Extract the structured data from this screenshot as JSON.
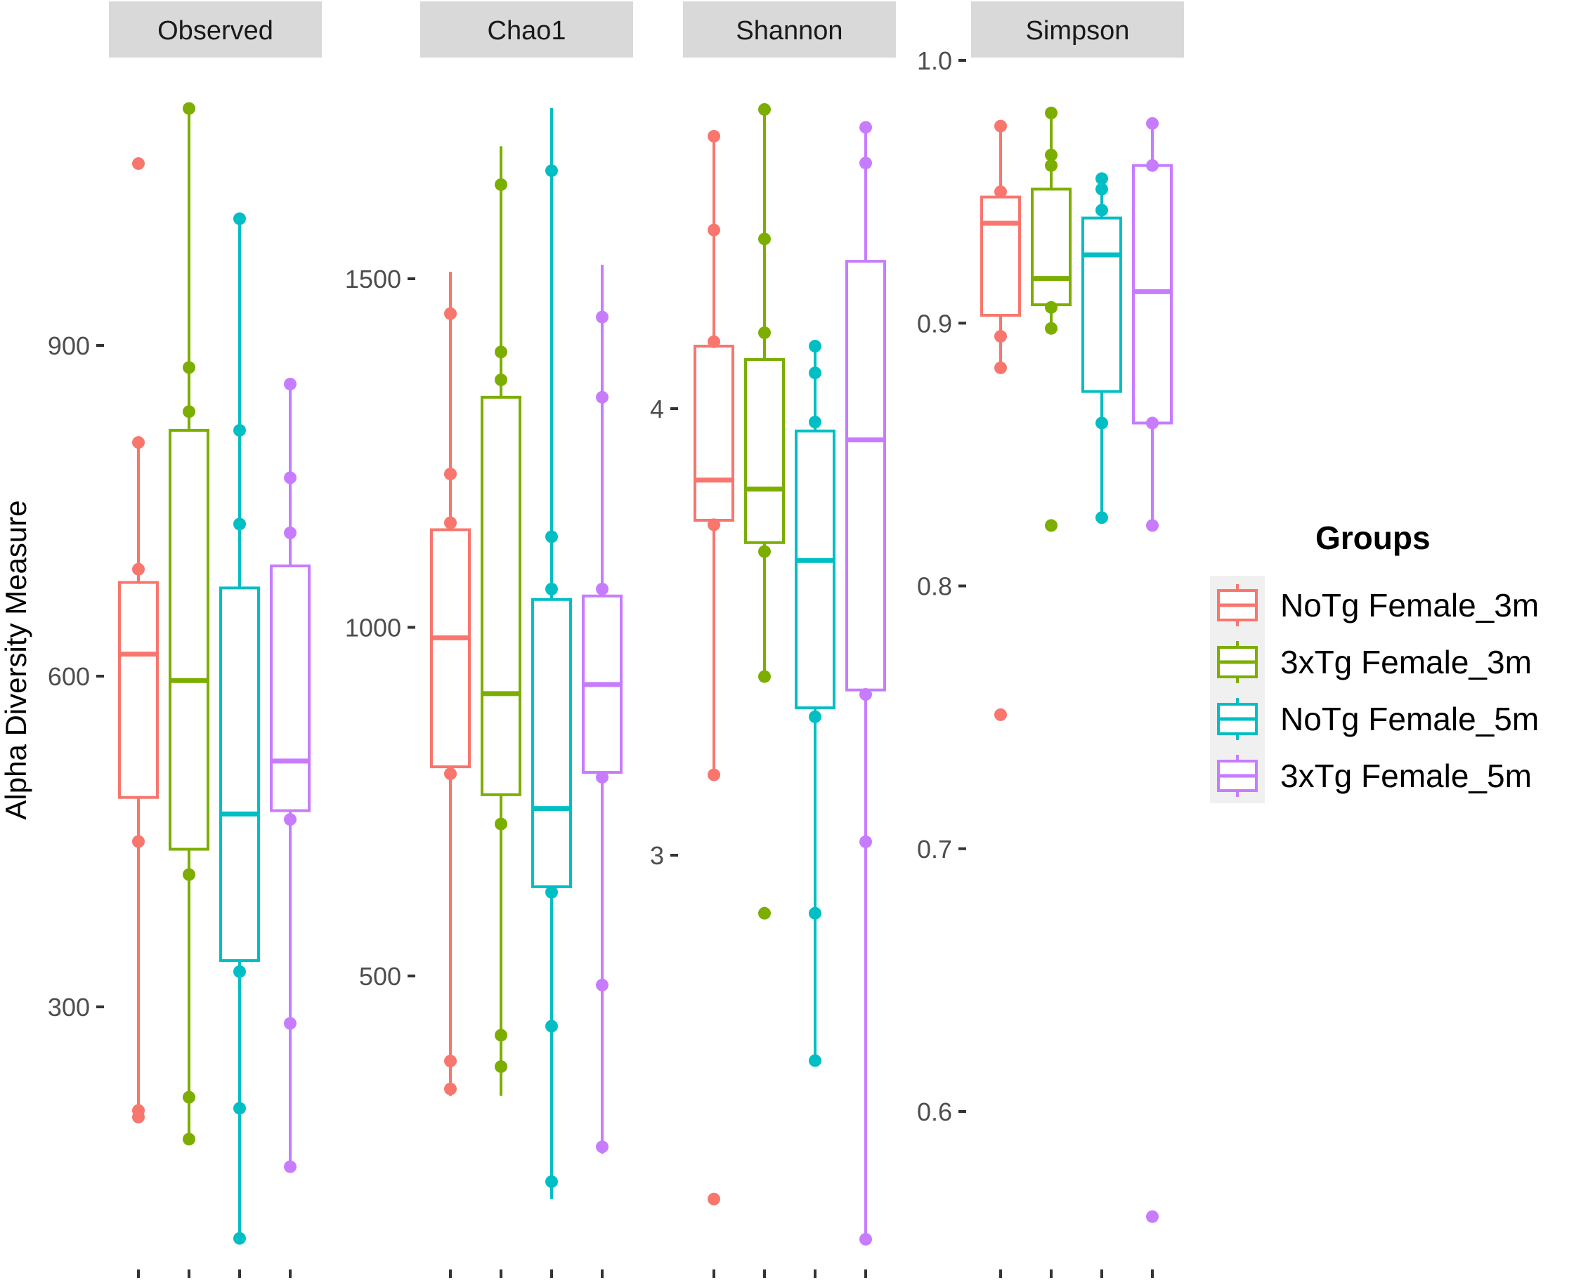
{
  "chart_data": {
    "type": "box",
    "ylabel": "Alpha Diversity Measure",
    "legend": {
      "title": "Groups",
      "position": "right",
      "entries": [
        {
          "name": "NoTg Female_3m",
          "color": "#F8766D"
        },
        {
          "name": "3xTg Female_3m",
          "color": "#7CAE00"
        },
        {
          "name": "NoTg Female_5m",
          "color": "#00BFC4"
        },
        {
          "name": "3xTg Female_5m",
          "color": "#C77CFF"
        }
      ]
    },
    "panels": [
      {
        "name": "Observed",
        "ylim": [
          90,
          1115
        ],
        "ticks": [
          300,
          600,
          900
        ],
        "tick_labels": [
          "300",
          "600",
          "900"
        ],
        "boxes": [
          {
            "group": "NoTg Female_3m",
            "q1": 490,
            "median": 620,
            "q3": 685,
            "whisker_low": 200,
            "whisker_high": 812,
            "points": [
              1065,
              812,
              697,
              450,
              206,
              200
            ]
          },
          {
            "group": "3xTg Female_3m",
            "q1": 443,
            "median": 596,
            "q3": 823,
            "whisker_low": 180,
            "whisker_high": 1115,
            "points": [
              1115,
              880,
              840,
              420,
              218,
              180
            ]
          },
          {
            "group": "NoTg Female_5m",
            "q1": 342,
            "median": 475,
            "q3": 680,
            "whisker_low": 90,
            "whisker_high": 1015,
            "points": [
              1015,
              823,
              738,
              332,
              208,
              90
            ]
          },
          {
            "group": "3xTg Female_5m",
            "q1": 478,
            "median": 523,
            "q3": 700,
            "whisker_low": 155,
            "whisker_high": 865,
            "points": [
              865,
              780,
              730,
              470,
              285,
              155
            ]
          }
        ]
      },
      {
        "name": "Chao1",
        "ylim": [
          180,
          1750
        ],
        "ticks": [
          500,
          1000,
          1500
        ],
        "tick_labels": [
          "500",
          "1000",
          "1500"
        ],
        "boxes": [
          {
            "group": "NoTg Female_3m",
            "q1": 800,
            "median": 985,
            "q3": 1140,
            "whisker_low": 328,
            "whisker_high": 1510,
            "points": [
              1450,
              1220,
              1150,
              790,
              378,
              338
            ]
          },
          {
            "group": "3xTg Female_3m",
            "q1": 760,
            "median": 905,
            "q3": 1330,
            "whisker_low": 328,
            "whisker_high": 1690,
            "points": [
              1635,
              1395,
              1355,
              718,
              415,
              370
            ]
          },
          {
            "group": "NoTg Female_5m",
            "q1": 628,
            "median": 740,
            "q3": 1040,
            "whisker_low": 180,
            "whisker_high": 1745,
            "points": [
              1655,
              1130,
              1055,
              620,
              428,
              205
            ]
          },
          {
            "group": "3xTg Female_5m",
            "q1": 792,
            "median": 918,
            "q3": 1045,
            "whisker_low": 245,
            "whisker_high": 1520,
            "points": [
              1445,
              1330,
              1055,
              785,
              487,
              255
            ]
          }
        ]
      },
      {
        "name": "Shannon",
        "ylim": [
          2.22,
          4.67
        ],
        "ticks": [
          3,
          4
        ],
        "tick_labels": [
          "3",
          "4"
        ],
        "boxes": [
          {
            "group": "NoTg Female_3m",
            "q1": 3.75,
            "median": 3.84,
            "q3": 4.14,
            "whisker_low": 3.18,
            "whisker_high": 4.61,
            "points": [
              4.61,
              4.4,
              4.15,
              3.74,
              3.18,
              2.23
            ]
          },
          {
            "group": "3xTg Female_3m",
            "q1": 3.7,
            "median": 3.82,
            "q3": 4.11,
            "whisker_low": 3.4,
            "whisker_high": 4.67,
            "points": [
              4.67,
              4.38,
              4.17,
              3.68,
              3.4,
              2.87
            ]
          },
          {
            "group": "NoTg Female_5m",
            "q1": 3.33,
            "median": 3.66,
            "q3": 3.95,
            "whisker_low": 2.54,
            "whisker_high": 4.14,
            "points": [
              4.14,
              4.08,
              3.97,
              3.31,
              2.87,
              2.54
            ]
          },
          {
            "group": "3xTg Female_5m",
            "q1": 3.37,
            "median": 3.93,
            "q3": 4.33,
            "whisker_low": 2.14,
            "whisker_high": 4.63,
            "points": [
              4.63,
              4.55,
              3.36,
              3.03,
              2.14
            ]
          }
        ]
      },
      {
        "name": "Simpson",
        "ylim": [
          0.56,
          1.0
        ],
        "ticks": [
          0.6,
          0.7,
          0.8,
          0.9,
          1.0
        ],
        "tick_labels": [
          "0.6",
          "0.7",
          "0.8",
          "0.9",
          "1.0"
        ],
        "boxes": [
          {
            "group": "NoTg Female_3m",
            "q1": 0.903,
            "median": 0.938,
            "q3": 0.948,
            "whisker_low": 0.883,
            "whisker_high": 0.975,
            "points": [
              0.975,
              0.95,
              0.895,
              0.883,
              0.751
            ]
          },
          {
            "group": "3xTg Female_3m",
            "q1": 0.907,
            "median": 0.917,
            "q3": 0.951,
            "whisker_low": 0.898,
            "whisker_high": 0.98,
            "points": [
              0.98,
              0.964,
              0.96,
              0.906,
              0.898,
              0.823
            ]
          },
          {
            "group": "NoTg Female_5m",
            "q1": 0.874,
            "median": 0.926,
            "q3": 0.94,
            "whisker_low": 0.826,
            "whisker_high": 0.955,
            "points": [
              0.955,
              0.951,
              0.943,
              0.862,
              0.826
            ]
          },
          {
            "group": "3xTg Female_5m",
            "q1": 0.862,
            "median": 0.912,
            "q3": 0.96,
            "whisker_low": 0.823,
            "whisker_high": 0.976,
            "points": [
              0.976,
              0.96,
              0.862,
              0.823,
              0.56
            ]
          }
        ]
      }
    ]
  }
}
